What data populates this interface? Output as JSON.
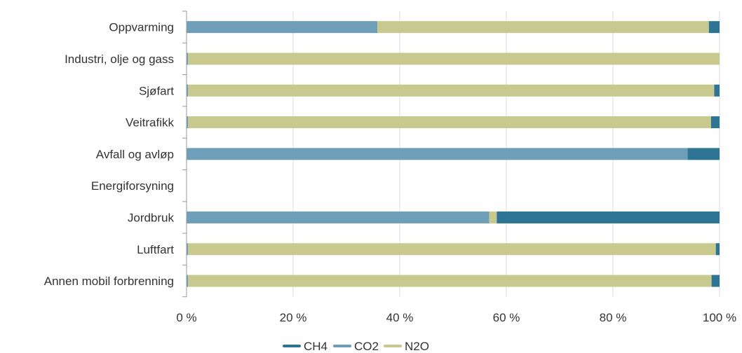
{
  "chart_data": {
    "type": "bar",
    "orientation": "horizontal",
    "stacked": true,
    "percent_stacked": true,
    "categories": [
      "Oppvarming",
      "Industri, olje og gass",
      "Sjøfart",
      "Veitrafikk",
      "Avfall og avløp",
      "Energiforsyning",
      "Jordbruk",
      "Luftfart",
      "Annen mobil forbrenning"
    ],
    "series": [
      {
        "name": "CO2",
        "color": "#6f9fb8",
        "values": [
          35.8,
          0.3,
          0.3,
          0.3,
          94.0,
          0,
          56.8,
          0.3,
          0.3
        ]
      },
      {
        "name": "N2O",
        "color": "#c8c98e",
        "values": [
          62.2,
          99.7,
          98.7,
          98.1,
          0.0,
          0,
          1.4,
          99.0,
          98.2
        ]
      },
      {
        "name": "CH4",
        "color": "#2d7495",
        "values": [
          2.0,
          0.0,
          1.0,
          1.6,
          6.0,
          0,
          41.8,
          0.7,
          1.5
        ]
      }
    ],
    "xlim": [
      0,
      100
    ],
    "x_ticks": [
      "0 %",
      "20 %",
      "40 %",
      "60 %",
      "80 %",
      "100 %"
    ],
    "grid": true,
    "legend_position": "bottom",
    "legend": [
      "CH4",
      "CO2",
      "N2O"
    ]
  }
}
